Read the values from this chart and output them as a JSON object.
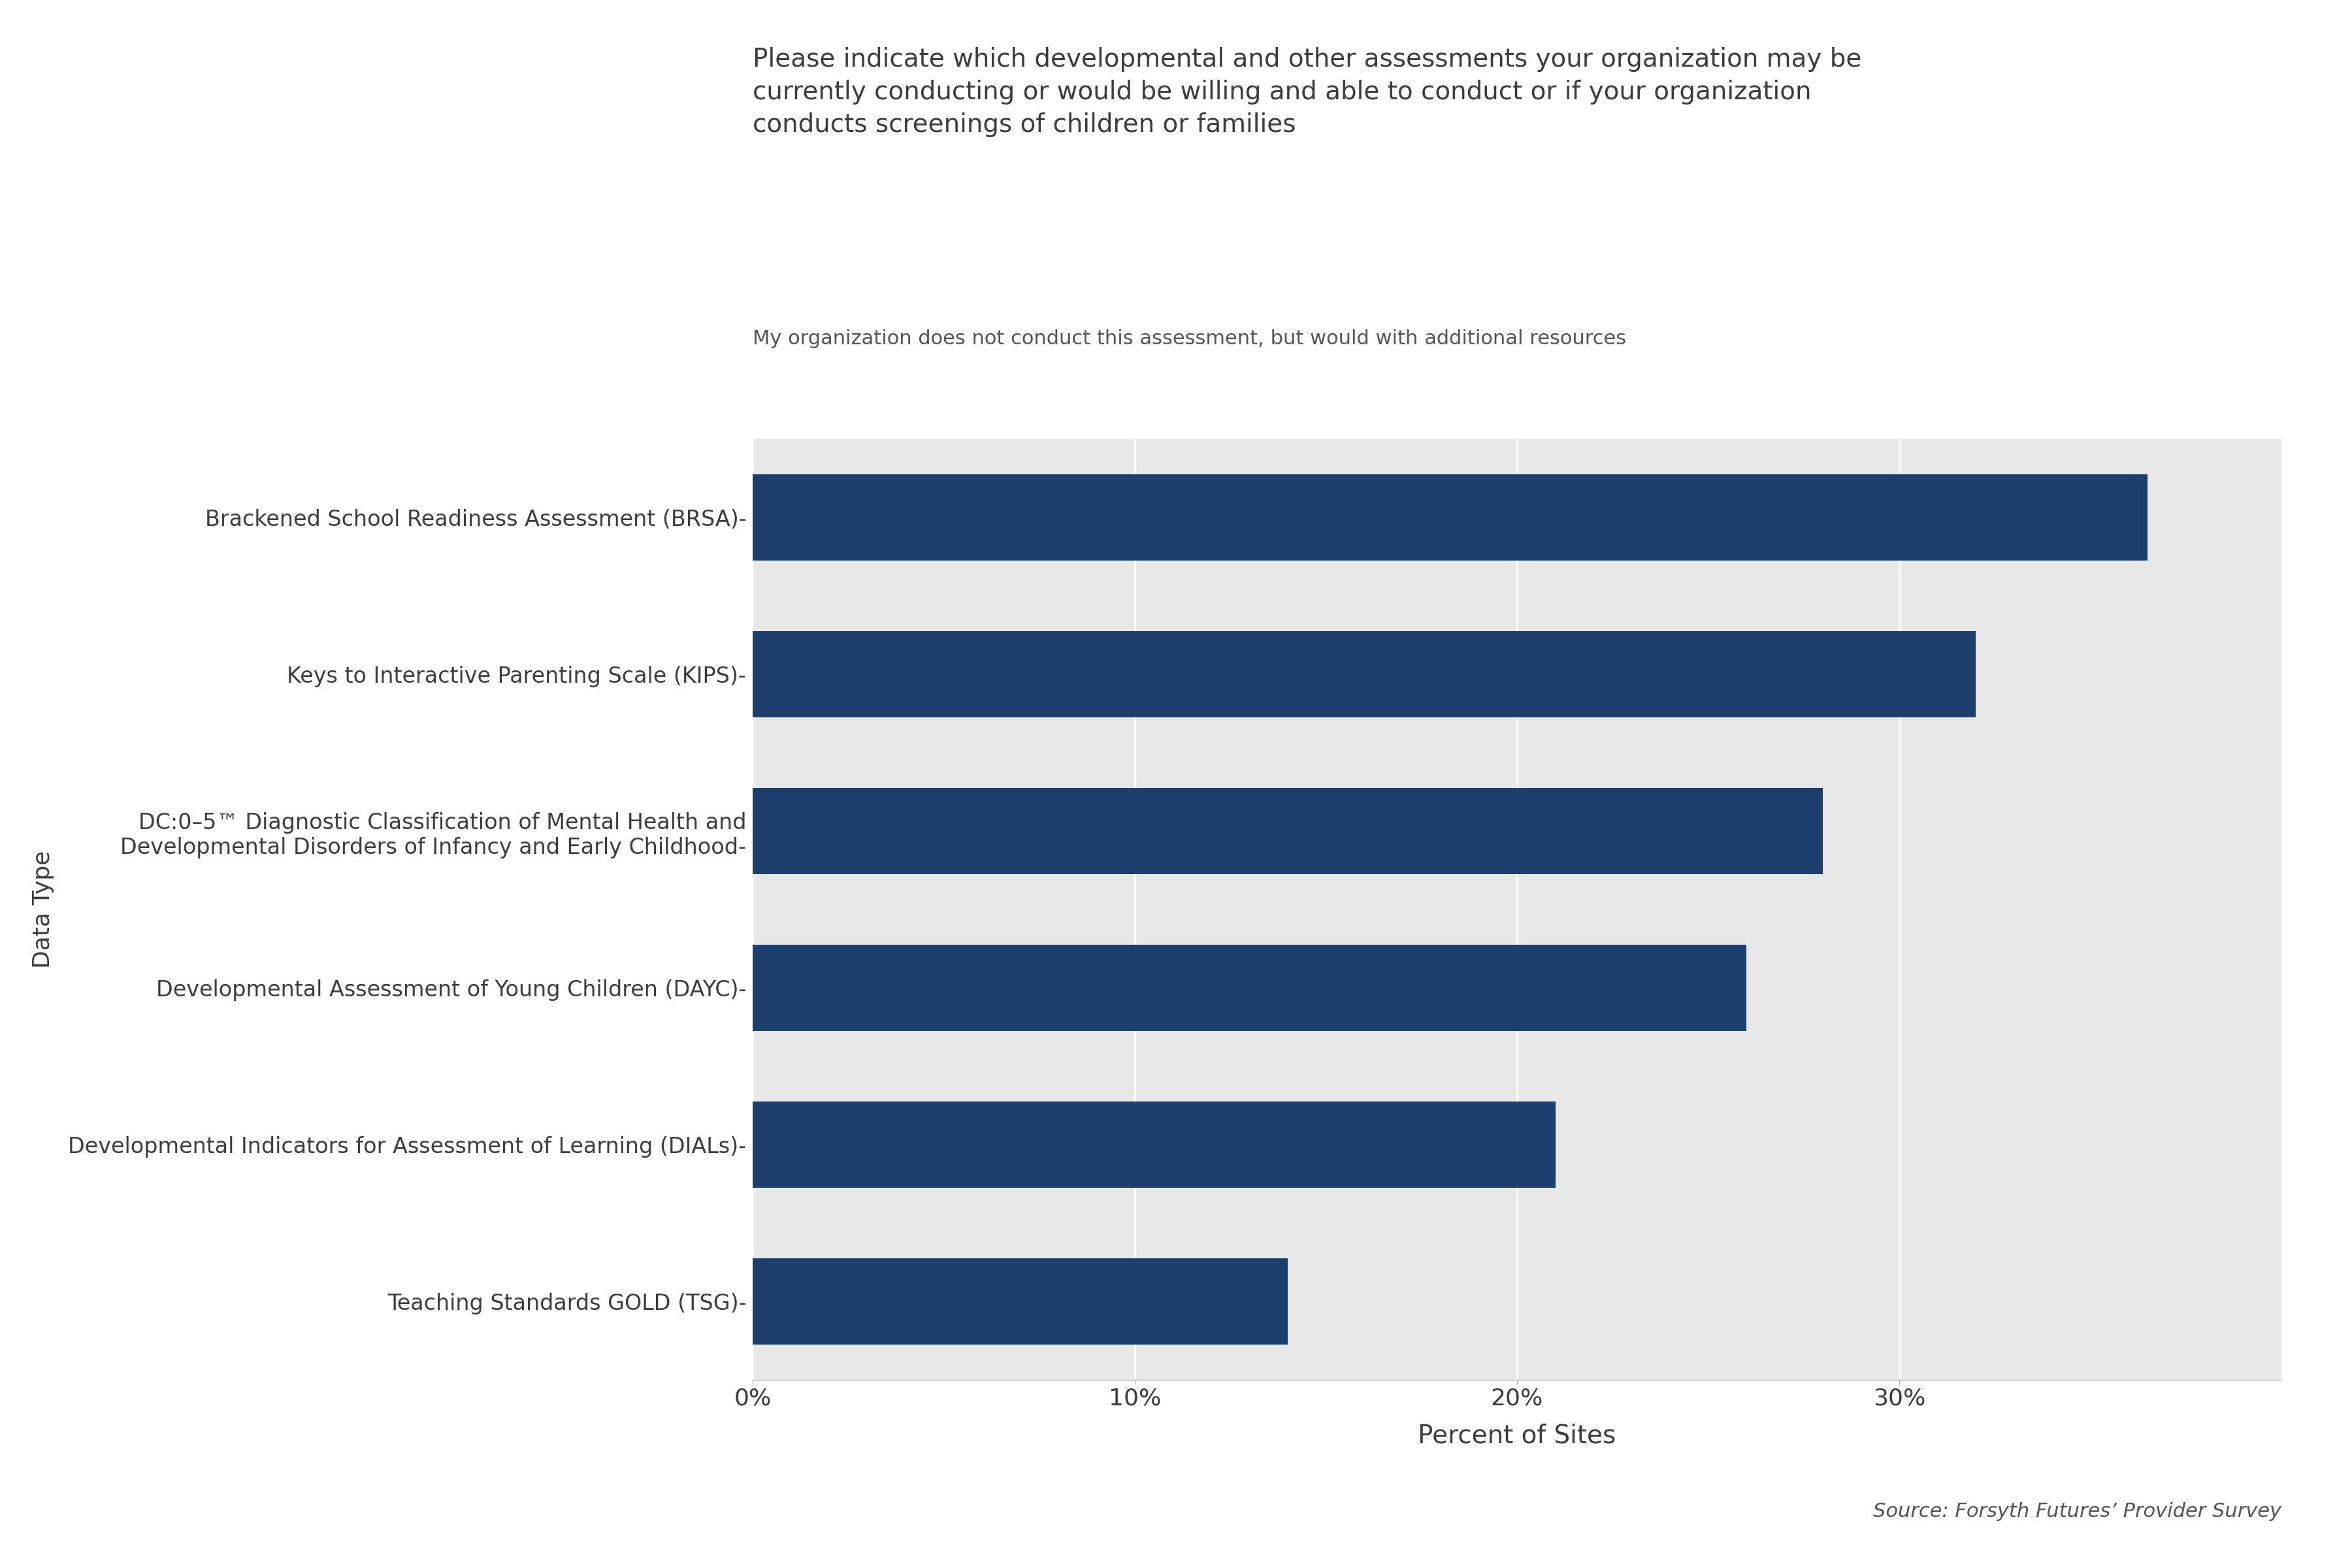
{
  "categories": [
    "Teaching Standards GOLD (TSG)",
    "Developmental Indicators for Assessment of Learning (DIALs)",
    "Developmental Assessment of Young Children (DAYC)",
    "DC:0–5™ Diagnostic Classification of Mental Health and\nDevelopmental Disorders of Infancy and Early Childhood",
    "Keys to Interactive Parenting Scale (KIPS)",
    "Brackened School Readiness Assessment (BRSA)"
  ],
  "values": [
    0.14,
    0.21,
    0.26,
    0.28,
    0.32,
    0.365
  ],
  "bar_color": "#1C3F6E",
  "figure_bg_color": "#FFFFFF",
  "plot_bg_color": "#E8E8E8",
  "title_line1": "Please indicate which developmental and other assessments your organization may be",
  "title_line2": "currently conducting or would be willing and able to conduct or if your organization",
  "title_line3": "conducts screenings of children or families",
  "subtitle": "My organization does not conduct this assessment, but would with additional resources",
  "xlabel": "Percent of Sites",
  "ylabel": "Data Type",
  "source": "Source: Forsyth Futures’ Provider Survey",
  "xlim": [
    0,
    0.4
  ],
  "xticks": [
    0,
    0.1,
    0.2,
    0.3
  ],
  "xticklabels": [
    "0%",
    "10%",
    "20%",
    "30%"
  ],
  "title_fontsize": 28,
  "subtitle_fontsize": 22,
  "axis_label_fontsize": 28,
  "tick_fontsize": 26,
  "category_fontsize": 24,
  "ylabel_fontsize": 26,
  "source_fontsize": 22,
  "bar_height": 0.55
}
